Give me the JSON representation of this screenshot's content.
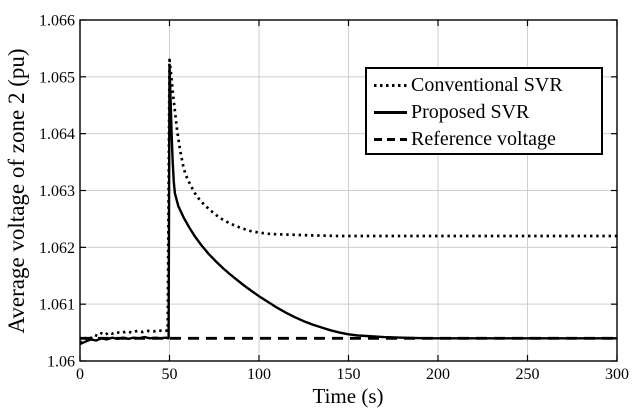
{
  "figure": {
    "background_color": "#ffffff",
    "axis_color": "#000000",
    "grid_color": "#cfcfcf",
    "line_color": "#000000"
  },
  "chart_data": {
    "type": "line",
    "title": "",
    "xlabel": "Time (s)",
    "ylabel": "Average voltage of zone 2 (pu)",
    "xlim": [
      0,
      300
    ],
    "ylim": [
      1.06,
      1.066
    ],
    "xticks": [
      0,
      50,
      100,
      150,
      200,
      250,
      300
    ],
    "xtick_labels": [
      "0",
      "50",
      "100",
      "150",
      "200",
      "250",
      "300"
    ],
    "yticks": [
      1.06,
      1.061,
      1.062,
      1.063,
      1.064,
      1.065,
      1.066
    ],
    "ytick_labels": [
      "1.06",
      "1.061",
      "1.062",
      "1.063",
      "1.064",
      "1.065",
      "1.066"
    ],
    "grid": true,
    "legend_position": "upper-right-inside",
    "series": [
      {
        "name": "Conventional SVR",
        "style": "dotted",
        "color": "#000000",
        "points": [
          [
            0,
            1.06032
          ],
          [
            2,
            1.06036
          ],
          [
            4,
            1.06042
          ],
          [
            6,
            1.0604
          ],
          [
            8,
            1.06046
          ],
          [
            10,
            1.06044
          ],
          [
            12,
            1.06049
          ],
          [
            14,
            1.06046
          ],
          [
            16,
            1.0605
          ],
          [
            18,
            1.06048
          ],
          [
            20,
            1.06051
          ],
          [
            23,
            1.06049
          ],
          [
            26,
            1.06052
          ],
          [
            29,
            1.0605
          ],
          [
            32,
            1.06053
          ],
          [
            35,
            1.06051
          ],
          [
            38,
            1.06053
          ],
          [
            41,
            1.06052
          ],
          [
            44,
            1.06054
          ],
          [
            47,
            1.06052
          ],
          [
            49,
            1.06054
          ],
          [
            50,
            1.0653
          ],
          [
            50.7,
            1.0651
          ],
          [
            51.5,
            1.06485
          ],
          [
            52,
            1.06468
          ],
          [
            53,
            1.0644
          ],
          [
            54,
            1.06412
          ],
          [
            55,
            1.0639
          ],
          [
            56,
            1.0637
          ],
          [
            58,
            1.06338
          ],
          [
            60,
            1.0632
          ],
          [
            62,
            1.06308
          ],
          [
            64,
            1.06296
          ],
          [
            67,
            1.06283
          ],
          [
            70,
            1.06273
          ],
          [
            74,
            1.06262
          ],
          [
            78,
            1.06252
          ],
          [
            82,
            1.06245
          ],
          [
            86,
            1.06239
          ],
          [
            90,
            1.06234
          ],
          [
            95,
            1.06229
          ],
          [
            100,
            1.06226
          ],
          [
            105,
            1.06224
          ],
          [
            110,
            1.06223
          ],
          [
            120,
            1.06222
          ],
          [
            130,
            1.06221
          ],
          [
            145,
            1.0622
          ],
          [
            160,
            1.0622
          ],
          [
            200,
            1.0622
          ],
          [
            250,
            1.0622
          ],
          [
            300,
            1.0622
          ]
        ]
      },
      {
        "name": "Proposed SVR",
        "style": "solid",
        "color": "#000000",
        "points": [
          [
            0,
            1.0603
          ],
          [
            3,
            1.06034
          ],
          [
            6,
            1.06038
          ],
          [
            9,
            1.06036
          ],
          [
            12,
            1.0604
          ],
          [
            15,
            1.06038
          ],
          [
            18,
            1.06041
          ],
          [
            21,
            1.06039
          ],
          [
            24,
            1.06041
          ],
          [
            27,
            1.06039
          ],
          [
            30,
            1.06041
          ],
          [
            33,
            1.0604
          ],
          [
            36,
            1.06042
          ],
          [
            39,
            1.0604
          ],
          [
            42,
            1.06041
          ],
          [
            45,
            1.0604
          ],
          [
            48,
            1.06041
          ],
          [
            49.5,
            1.0604
          ],
          [
            50,
            1.0652
          ],
          [
            50.6,
            1.0646
          ],
          [
            51.2,
            1.064
          ],
          [
            51.8,
            1.0635
          ],
          [
            52.4,
            1.06315
          ],
          [
            53,
            1.06295
          ],
          [
            55,
            1.06272
          ],
          [
            58,
            1.06252
          ],
          [
            61,
            1.06235
          ],
          [
            64,
            1.0622
          ],
          [
            68,
            1.06203
          ],
          [
            72,
            1.06188
          ],
          [
            76,
            1.06175
          ],
          [
            80,
            1.06163
          ],
          [
            84,
            1.06152
          ],
          [
            88,
            1.06142
          ],
          [
            92,
            1.06132
          ],
          [
            96,
            1.06123
          ],
          [
            100,
            1.06114
          ],
          [
            105,
            1.06104
          ],
          [
            110,
            1.06094
          ],
          [
            115,
            1.06085
          ],
          [
            120,
            1.06077
          ],
          [
            125,
            1.0607
          ],
          [
            130,
            1.06064
          ],
          [
            135,
            1.06059
          ],
          [
            140,
            1.06054
          ],
          [
            145,
            1.0605
          ],
          [
            150,
            1.06047
          ],
          [
            155,
            1.06045
          ],
          [
            160,
            1.06044
          ],
          [
            170,
            1.06042
          ],
          [
            180,
            1.06041
          ],
          [
            195,
            1.0604
          ],
          [
            220,
            1.0604
          ],
          [
            260,
            1.0604
          ],
          [
            300,
            1.0604
          ]
        ]
      },
      {
        "name": "Reference voltage",
        "style": "dashed",
        "color": "#000000",
        "points": [
          [
            0,
            1.0604
          ],
          [
            300,
            1.0604
          ]
        ]
      }
    ]
  },
  "legend": {
    "entries": [
      {
        "label": "Conventional SVR",
        "style": "dotted"
      },
      {
        "label": "Proposed SVR",
        "style": "solid"
      },
      {
        "label": "Reference voltage",
        "style": "dashed"
      }
    ]
  }
}
